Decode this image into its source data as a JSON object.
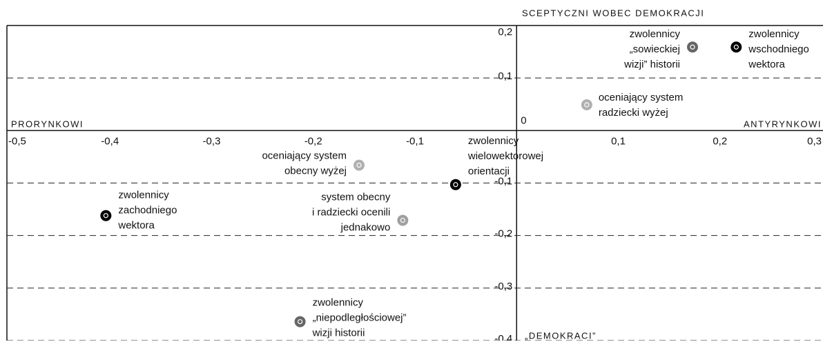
{
  "chart_data": {
    "type": "scatter",
    "top_label": "SCEPTYCZNI WOBEC DEMOKRACJI",
    "bottom_label": "„DEMOKRACI”",
    "left_label": "PRORYNKOWI",
    "right_label": "ANTYRYNKOWI",
    "xlim": [
      -0.5,
      0.3
    ],
    "ylim": [
      -0.4,
      0.2
    ],
    "xticks": [
      {
        "value": -0.5,
        "label": "-0,5"
      },
      {
        "value": -0.4,
        "label": "-0,4"
      },
      {
        "value": -0.3,
        "label": "-0,3"
      },
      {
        "value": -0.2,
        "label": "-0,2"
      },
      {
        "value": -0.1,
        "label": "-0,1"
      },
      0,
      {
        "value": 0.1,
        "label": "0,1"
      },
      {
        "value": 0.2,
        "label": "0,2"
      },
      {
        "value": 0.3,
        "label": "0,3"
      }
    ],
    "yticks": [
      {
        "value": 0.2,
        "label": "0,2"
      },
      {
        "value": 0.1,
        "label": "0,1"
      },
      {
        "value": -0.1,
        "label": "-0,1"
      },
      {
        "value": -0.2,
        "label": "-0,2"
      },
      {
        "value": -0.3,
        "label": "-0,3"
      },
      {
        "value": -0.4,
        "label": "-0,4"
      }
    ],
    "grid": true,
    "points": [
      {
        "label": [
          "zwolennicy",
          "„sowieckiej",
          "wizji” historii"
        ],
        "x": 0.173,
        "y": 0.159,
        "color": "#666666"
      },
      {
        "label": [
          "zwolennicy",
          "wschodniego",
          "wektora"
        ],
        "x": 0.216,
        "y": 0.159,
        "color": "#000000"
      },
      {
        "label": [
          "oceniający system",
          "radziecki wyżej"
        ],
        "x": 0.069,
        "y": 0.049,
        "color": "#b0b0b0"
      },
      {
        "label": [
          "zwolennicy",
          "wielowektorowej",
          "orientacji"
        ],
        "x": -0.06,
        "y": -0.103,
        "color": "#000000"
      },
      {
        "label": [
          "oceniający system",
          "obecny wyżej"
        ],
        "x": -0.155,
        "y": -0.066,
        "color": "#b0b0b0"
      },
      {
        "label": [
          "zwolennicy",
          "zachodniego",
          "wektora"
        ],
        "x": -0.404,
        "y": -0.162,
        "color": "#000000"
      },
      {
        "label": [
          "system obecny",
          "i radziecki ocenili",
          "jednakowo"
        ],
        "x": -0.112,
        "y": -0.171,
        "color": "#a0a0a0"
      },
      {
        "label": [
          "zwolennicy",
          "„niepodległościowej”",
          "wizji historii"
        ],
        "x": -0.213,
        "y": -0.364,
        "color": "#666666"
      }
    ]
  }
}
